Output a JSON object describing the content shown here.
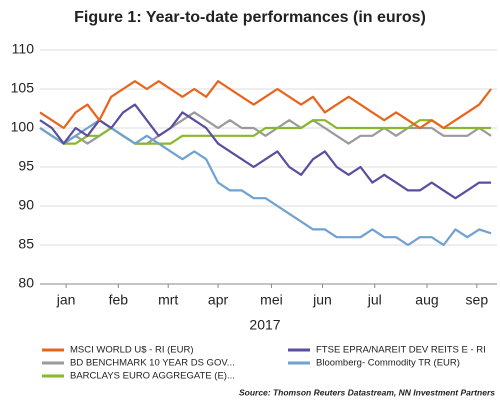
{
  "chart_data": {
    "type": "line",
    "title": "Figure 1: Year-to-date performances (in euros)",
    "x_label": "2017",
    "source": "Source: Thomson Reuters Datastream, NN Investment Partners",
    "x": [
      0,
      1,
      2,
      3,
      4,
      5,
      6,
      7,
      8,
      9,
      10,
      11,
      12,
      13,
      14,
      15,
      16,
      17,
      18,
      19,
      20,
      21,
      22,
      23,
      24,
      25,
      26,
      27,
      28,
      29,
      30,
      31,
      32,
      33,
      34,
      35,
      36,
      37,
      38
    ],
    "xlim": [
      0,
      38.5
    ],
    "xticks": [
      {
        "value": 2.2,
        "label": "jan"
      },
      {
        "value": 6.6,
        "label": "feb"
      },
      {
        "value": 10.8,
        "label": "mrt"
      },
      {
        "value": 15,
        "label": "apr"
      },
      {
        "value": 19.5,
        "label": "mei"
      },
      {
        "value": 23.8,
        "label": "jun"
      },
      {
        "value": 28.2,
        "label": "jul"
      },
      {
        "value": 32.6,
        "label": "aug"
      },
      {
        "value": 36.8,
        "label": "sep"
      }
    ],
    "ylim": [
      80,
      110
    ],
    "yticks": [
      80,
      85,
      90,
      95,
      100,
      105,
      110
    ],
    "grid": true,
    "series": [
      {
        "name": "MSCI WORLD U$ - RI (EUR)",
        "color": "#e8641b",
        "values": [
          102,
          101,
          100,
          102,
          103,
          101,
          104,
          105,
          106,
          105,
          106,
          105,
          104,
          105,
          104,
          106,
          105,
          104,
          103,
          104,
          105,
          104,
          103,
          104,
          102,
          103,
          104,
          103,
          102,
          101,
          102,
          101,
          100,
          101,
          100,
          101,
          102,
          103,
          105
        ]
      },
      {
        "name": "FTSE EPRA/NAREIT DEV REITS E - RI",
        "color": "#5b4da0",
        "values": [
          101,
          100,
          98,
          100,
          99,
          101,
          100,
          102,
          103,
          101,
          99,
          100,
          102,
          101,
          100,
          98,
          97,
          96,
          95,
          96,
          97,
          95,
          94,
          96,
          97,
          95,
          94,
          95,
          93,
          94,
          93,
          92,
          92,
          93,
          92,
          91,
          92,
          93,
          93
        ]
      },
      {
        "name": "BD BENCHMARK 10 YEAR DS GOV...",
        "color": "#9a9a9a",
        "values": [
          100,
          99,
          98,
          99,
          98,
          99,
          100,
          99,
          98,
          98,
          99,
          100,
          101,
          102,
          101,
          100,
          101,
          100,
          100,
          99,
          100,
          101,
          100,
          101,
          100,
          99,
          98,
          99,
          99,
          100,
          99,
          100,
          100,
          100,
          99,
          99,
          99,
          100,
          99
        ]
      },
      {
        "name": "Bloomberg- Commodity TR (EUR)",
        "color": "#6fa1d2",
        "values": [
          100,
          99,
          98,
          99,
          100,
          101,
          100,
          99,
          98,
          99,
          98,
          97,
          96,
          97,
          96,
          93,
          92,
          92,
          91,
          91,
          90,
          89,
          88,
          87,
          87,
          86,
          86,
          86,
          87,
          86,
          86,
          85,
          86,
          86,
          85,
          87,
          86,
          87,
          86.5
        ]
      },
      {
        "name": "BARCLAYS EURO AGGREGATE (E)...",
        "color": "#8ab82d",
        "values": [
          100,
          99,
          98,
          98,
          99,
          99,
          100,
          99,
          98,
          98,
          98,
          98,
          99,
          99,
          99,
          99,
          99,
          99,
          99,
          100,
          100,
          100,
          100,
          101,
          101,
          100,
          100,
          100,
          100,
          100,
          100,
          100,
          101,
          101,
          100,
          100,
          100,
          100,
          100
        ]
      }
    ]
  }
}
